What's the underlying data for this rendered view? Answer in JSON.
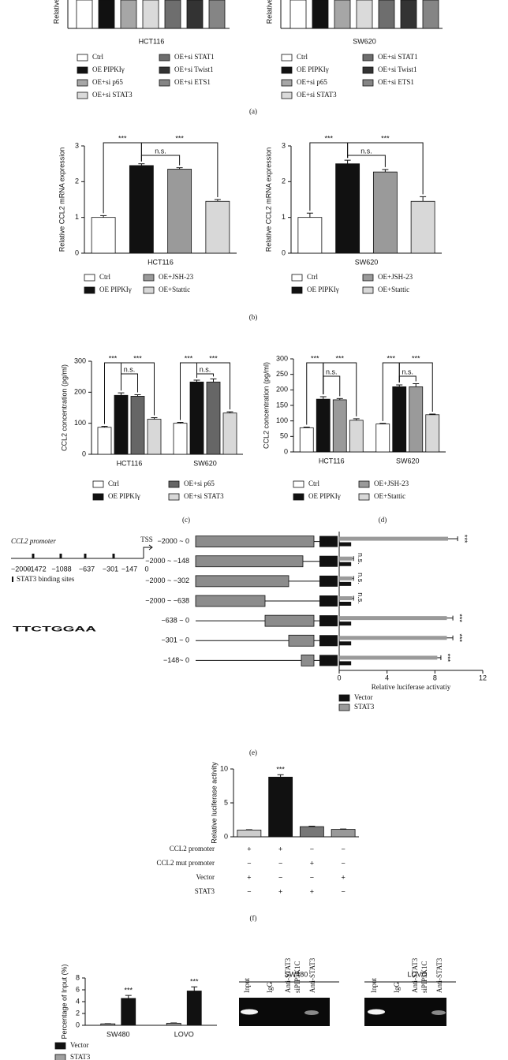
{
  "panel_labels": [
    "(a)",
    "(b)",
    "(c)",
    "(d)",
    "(e)",
    "(f)"
  ],
  "chart_data": [
    {
      "type": "bar",
      "y_label": "Relative",
      "x_label": "HCT116",
      "legend": [
        {
          "name": "Ctrl",
          "color": "#ffffff"
        },
        {
          "name": "OE PIPKIγ",
          "color": "#111111"
        },
        {
          "name": "OE+si p65",
          "color": "#a6a6a6"
        },
        {
          "name": "OE+si STAT3",
          "color": "#dadada"
        },
        {
          "name": "OE+si STAT1",
          "color": "#6e6e6e"
        },
        {
          "name": "OE+si Twist1",
          "color": "#333333"
        },
        {
          "name": "OE+si ETS1",
          "color": "#858585"
        }
      ]
    },
    {
      "type": "bar",
      "y_label": "Relative",
      "x_label": "SW620",
      "legend": [
        {
          "name": "Ctrl",
          "color": "#ffffff"
        },
        {
          "name": "OE PIPKIγ",
          "color": "#111111"
        },
        {
          "name": "OE+si p65",
          "color": "#a6a6a6"
        },
        {
          "name": "OE+si STAT3",
          "color": "#dadada"
        },
        {
          "name": "OE+si STAT1",
          "color": "#6e6e6e"
        },
        {
          "name": "OE+si Twist1",
          "color": "#333333"
        },
        {
          "name": "OE+si ETS1",
          "color": "#858585"
        }
      ]
    },
    {
      "type": "bar",
      "y_label": "Relative CCL2 mRNA expression",
      "x_label": "HCT116",
      "categories": [
        "Ctrl",
        "OE PIPKIγ",
        "OE+JSH-23",
        "OE+Stattic"
      ],
      "colors": [
        "#ffffff",
        "#111111",
        "#9a9a9a",
        "#d8d8d8"
      ],
      "values": [
        1.0,
        2.45,
        2.35,
        1.45
      ],
      "errors": [
        0.05,
        0.05,
        0.04,
        0.05
      ],
      "ylim": [
        0,
        3
      ],
      "yticks": [
        0,
        1,
        2,
        3
      ],
      "annotations": [
        "***",
        "n.s.",
        "***"
      ]
    },
    {
      "type": "bar",
      "y_label": "Relative CCL2 mRNA expression",
      "x_label": "SW620",
      "categories": [
        "Ctrl",
        "OE PIPKIγ",
        "OE+JSH-23",
        "OE+Stattic"
      ],
      "colors": [
        "#ffffff",
        "#111111",
        "#9a9a9a",
        "#d8d8d8"
      ],
      "values": [
        1.0,
        2.5,
        2.27,
        1.45
      ],
      "errors": [
        0.12,
        0.1,
        0.07,
        0.13
      ],
      "ylim": [
        0,
        3
      ],
      "yticks": [
        0,
        1,
        2,
        3
      ],
      "annotations": [
        "***",
        "n.s.",
        "***"
      ]
    },
    {
      "type": "bar",
      "y_label": "CCL2 concentration (pg/ml)",
      "categories": [
        "HCT116",
        "SW620"
      ],
      "series": [
        {
          "name": "Ctrl",
          "color": "#ffffff",
          "values": [
            87,
            100
          ],
          "errors": [
            3,
            3
          ]
        },
        {
          "name": "OE PIPKIγ",
          "color": "#111111",
          "values": [
            190,
            233
          ],
          "errors": [
            8,
            6
          ]
        },
        {
          "name": "OE+si p65",
          "color": "#666666",
          "values": [
            187,
            233
          ],
          "errors": [
            5,
            10
          ]
        },
        {
          "name": "OE+si STAT3",
          "color": "#d8d8d8",
          "values": [
            113,
            133
          ],
          "errors": [
            5,
            4
          ]
        }
      ],
      "ylim": [
        0,
        300
      ],
      "yticks": [
        0,
        100,
        200,
        300
      ],
      "annotations": [
        "***",
        "n.s.",
        "***",
        "***",
        "n.s.",
        "***"
      ]
    },
    {
      "type": "bar",
      "y_label": "CCL2 concentration (pg/ml)",
      "categories": [
        "HCT116",
        "SW620"
      ],
      "series": [
        {
          "name": "Ctrl",
          "color": "#ffffff",
          "values": [
            78,
            90
          ],
          "errors": [
            2,
            2
          ]
        },
        {
          "name": "OE PIPKIγ",
          "color": "#111111",
          "values": [
            170,
            210
          ],
          "errors": [
            8,
            6
          ]
        },
        {
          "name": "OE+JSH-23",
          "color": "#9a9a9a",
          "values": [
            168,
            210
          ],
          "errors": [
            4,
            10
          ]
        },
        {
          "name": "OE+Stattic",
          "color": "#d8d8d8",
          "values": [
            102,
            120
          ],
          "errors": [
            5,
            2
          ]
        }
      ],
      "ylim": [
        0,
        300
      ],
      "yticks": [
        0,
        50,
        100,
        150,
        200,
        250,
        300
      ],
      "annotations": [
        "***",
        "n.s.",
        "***",
        "***",
        "n.s.",
        "***"
      ]
    },
    {
      "type": "hbar",
      "x_label": "Relative luciferase activatiy",
      "categories": [
        "−2000 ~ 0",
        "−2000 ~ −148",
        "−2000 ~ −302",
        "−2000 ~ −638",
        "−638 ~ 0",
        "−301 ~ 0",
        "−148~ 0"
      ],
      "series": [
        {
          "name": "Vector",
          "color": "#111111",
          "values": [
            1,
            1,
            1,
            1,
            1,
            1,
            1
          ]
        },
        {
          "name": "STAT3",
          "color": "#9a9a9a",
          "values": [
            9.1,
            1.1,
            1.1,
            1.1,
            9.0,
            9.0,
            8.2
          ],
          "errors": [
            0.8,
            0.1,
            0.1,
            0.1,
            0.5,
            0.5,
            0.3
          ]
        }
      ],
      "xlim": [
        0,
        12
      ],
      "xticks": [
        0,
        4,
        8,
        12
      ],
      "annotations": [
        "***",
        "n.s.",
        "n.s.",
        "n.s.",
        "***",
        "***",
        "***"
      ],
      "construct_tag": "Luc"
    },
    {
      "type": "bar",
      "y_label": "Relative luciferase activity",
      "colors": [
        "#cccccc",
        "#111111",
        "#777777",
        "#999999"
      ],
      "values": [
        1.0,
        8.8,
        1.5,
        1.1
      ],
      "errors": [
        0.05,
        0.35,
        0.07,
        0.05
      ],
      "ylim": [
        0,
        10
      ],
      "yticks": [
        0,
        5,
        10
      ],
      "annotations": [
        "***"
      ]
    },
    {
      "type": "bar",
      "y_label": "Percentage of Input (%)",
      "categories": [
        "SW480",
        "LOVO"
      ],
      "series": [
        {
          "name": "Vector",
          "color": "#111111",
          "values": [
            4.55,
            5.8
          ],
          "errors": [
            0.5,
            0.7
          ]
        },
        {
          "name": "STAT3",
          "color": "#a0a0a0",
          "values": [
            0.25,
            0.35
          ],
          "errors": [
            0.03,
            0.05
          ]
        }
      ],
      "ylim": [
        0,
        8
      ],
      "yticks": [
        0,
        2,
        4,
        6,
        8
      ],
      "annotations": [
        "***",
        "***"
      ]
    }
  ],
  "condition_table": {
    "rows": [
      {
        "label": "CCL2 promoter",
        "marks": [
          "+",
          "+",
          "−",
          "−"
        ]
      },
      {
        "label": "CCL2 mut promoter",
        "marks": [
          "−",
          "−",
          "+",
          "−"
        ]
      },
      {
        "label": "Vector",
        "marks": [
          "+",
          "−",
          "−",
          "+"
        ]
      },
      {
        "label": "STAT3",
        "marks": [
          "−",
          "+",
          "+",
          "−"
        ]
      }
    ]
  },
  "promoter_diagram": {
    "title": "CCL2 promoter",
    "tss": "TSS",
    "positions": [
      "−2000",
      "−1472",
      "−1088",
      "−637",
      "−301",
      "−147",
      "0"
    ],
    "legend": "STAT3 binding sites",
    "motif": "TTCTGGAA"
  },
  "gel": {
    "panels": [
      {
        "title": "SW480",
        "lanes": [
          [
            "Input"
          ],
          [
            "IgG"
          ],
          [
            "Anti-STAT3",
            "siPIP5K1C"
          ],
          [
            "Anti-STAT3"
          ]
        ]
      },
      {
        "title": "LOVO",
        "lanes": [
          [
            "Input"
          ],
          [
            "IgG"
          ],
          [
            "Anti-STAT3",
            "siPIP5K1C"
          ],
          [
            "Anti-STAT3"
          ]
        ]
      }
    ]
  }
}
